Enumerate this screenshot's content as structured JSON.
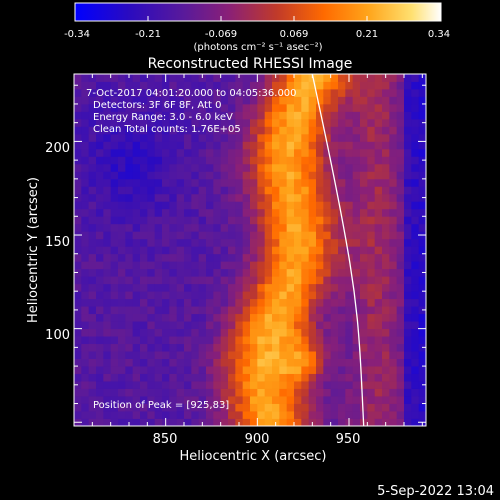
{
  "colorbar": {
    "tick_labels": [
      "-0.34",
      "-0.21",
      "-0.069",
      "0.069",
      "0.21",
      "0.34"
    ],
    "units": "(photons cm⁻² s⁻¹ asec⁻²)",
    "range": [
      -0.34,
      0.34
    ],
    "colormap": [
      "#0000ff",
      "#2b0bbf",
      "#5a1a9a",
      "#8a2077",
      "#c03a2a",
      "#ff6a00",
      "#ffa41a",
      "#ffe070",
      "#ffffff"
    ]
  },
  "footer": {
    "timestamp": "5-Sep-2022 13:04"
  },
  "chart_data": {
    "type": "heatmap",
    "title": "Reconstructed RHESSI Image",
    "xlabel": "Heliocentric X (arcsec)",
    "ylabel": "Heliocentric Y (arcsec)",
    "xlim": [
      800,
      992
    ],
    "ylim": [
      48,
      236
    ],
    "x_ticks": [
      850,
      900,
      950
    ],
    "y_ticks": [
      100,
      150,
      200
    ],
    "x_tick_labels": [
      "850",
      "900",
      "950"
    ],
    "y_tick_labels": [
      "100",
      "150",
      "200"
    ],
    "annotations": [
      "7-Oct-2017 04:01:20.000 to 04:05:36.000",
      "Detectors: 3F 6F 8F, Att 0",
      "Energy Range: 3.0 - 6.0 keV",
      "Clean    Total counts: 1.76E+05"
    ],
    "peak_label": "Position of Peak = [925,83]",
    "peak": {
      "x": 925,
      "y": 83
    },
    "limb_curve": [
      [
        930,
        236
      ],
      [
        940,
        190
      ],
      [
        948,
        150
      ],
      [
        953,
        120
      ],
      [
        956,
        90
      ],
      [
        958,
        48
      ]
    ]
  }
}
